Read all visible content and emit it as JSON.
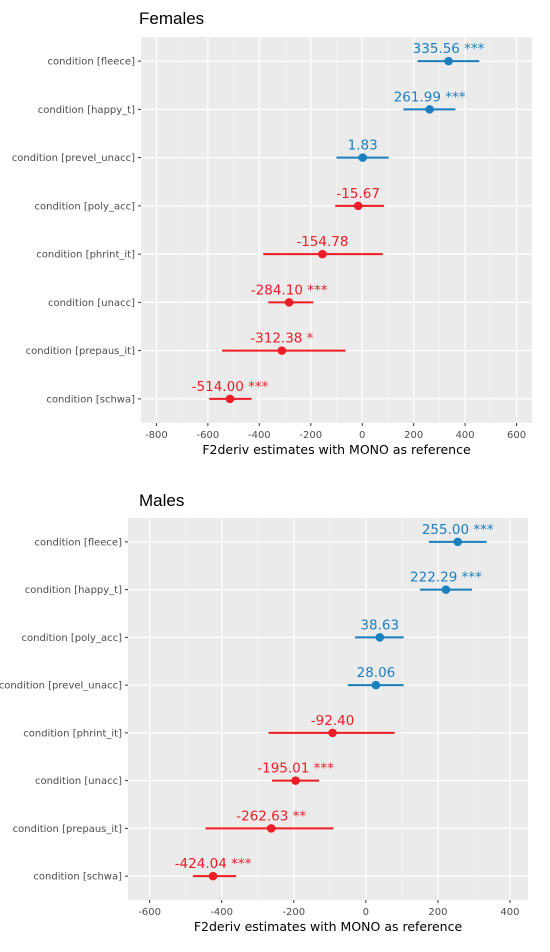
{
  "chart_data": [
    {
      "type": "scatter",
      "title": "Females",
      "xlabel": "F2deriv estimates with MONO as reference",
      "ylabel": "",
      "xlim": [
        -860,
        660
      ],
      "xticks": [
        -800,
        -600,
        -400,
        -200,
        0,
        200,
        400,
        600
      ],
      "grid": true,
      "colors": {
        "positive": "#1a7fbf",
        "negative": "#ee1c25"
      },
      "categories": [
        "condition [fleece]",
        "condition [happy_t]",
        "condition [prevel_unacc]",
        "condition [poly_acc]",
        "condition [phrint_it]",
        "condition [unacc]",
        "condition [prepaus_it]",
        "condition [schwa]"
      ],
      "estimates": [
        335.56,
        261.99,
        1.83,
        -15.67,
        -154.78,
        -284.1,
        -312.38,
        -514.0
      ],
      "ci_low": [
        215,
        160,
        -100,
        -105,
        -385,
        -365,
        -545,
        -595
      ],
      "ci_high": [
        455,
        362,
        103,
        85,
        80,
        -190,
        -65,
        -430
      ],
      "labels": [
        "335.56 ***",
        "261.99 ***",
        "1.83",
        "-15.67",
        "-154.78",
        "-284.10 ***",
        "-312.38 *",
        "-514.00 ***"
      ]
    },
    {
      "type": "scatter",
      "title": "Males",
      "xlabel": "F2deriv estimates with MONO as reference",
      "ylabel": "",
      "xlim": [
        -660,
        450
      ],
      "xticks": [
        -600,
        -400,
        -200,
        0,
        200,
        400
      ],
      "grid": true,
      "colors": {
        "positive": "#1a7fbf",
        "negative": "#ee1c25"
      },
      "categories": [
        "condition [fleece]",
        "condition [happy_t]",
        "condition [poly_acc]",
        "condition [prevel_unacc]",
        "condition [phrint_it]",
        "condition [unacc]",
        "condition [prepaus_it]",
        "condition [schwa]"
      ],
      "estimates": [
        255.0,
        222.29,
        38.63,
        28.06,
        -92.4,
        -195.01,
        -262.63,
        -424.04
      ],
      "ci_low": [
        175,
        150,
        -30,
        -50,
        -270,
        -260,
        -445,
        -480
      ],
      "ci_high": [
        335,
        295,
        105,
        105,
        80,
        -130,
        -90,
        -360
      ],
      "labels": [
        "255.00 ***",
        "222.29 ***",
        "38.63",
        "28.06",
        "-92.40",
        "-195.01 ***",
        "-262.63 **",
        "-424.04 ***"
      ]
    }
  ]
}
